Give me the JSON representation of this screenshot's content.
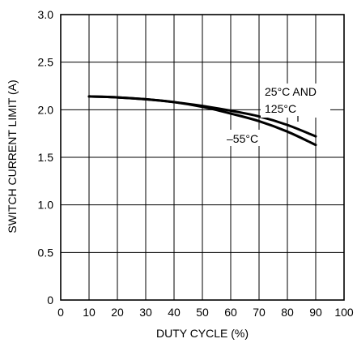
{
  "chart_data": {
    "type": "line",
    "title": "",
    "xlabel": "DUTY CYCLE (%)",
    "ylabel": "SWITCH CURRENT LIMIT (A)",
    "xlim": [
      0,
      100
    ],
    "ylim": [
      0,
      3.0
    ],
    "x_ticks": [
      "0",
      "10",
      "20",
      "30",
      "40",
      "50",
      "60",
      "70",
      "80",
      "90",
      "100"
    ],
    "y_ticks": [
      "0",
      "0.5",
      "1.0",
      "1.5",
      "2.0",
      "2.5",
      "3.0"
    ],
    "grid": true,
    "x": [
      10,
      20,
      30,
      40,
      50,
      60,
      70,
      80,
      90
    ],
    "series": [
      {
        "values": [
          2.14,
          2.13,
          2.11,
          2.08,
          2.04,
          1.99,
          1.93,
          1.84,
          1.72
        ],
        "color": "#000000"
      },
      {
        "values": [
          2.14,
          2.13,
          2.11,
          2.08,
          2.03,
          1.96,
          1.88,
          1.77,
          1.63
        ],
        "color": "#000000"
      }
    ],
    "annotations": [
      {
        "line1": "25°C AND",
        "line2": "125°C"
      },
      {
        "line1": "–55°C"
      }
    ]
  }
}
